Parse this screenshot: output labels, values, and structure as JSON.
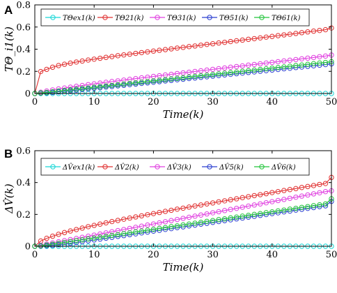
{
  "chart_data": [
    {
      "type": "line",
      "panel_label": "A",
      "xlabel": "Time(k)",
      "ylabel": "TΘ_i1(k)",
      "xlim": [
        0,
        50
      ],
      "ylim": [
        0,
        0.8
      ],
      "xticks": [
        "0",
        "10",
        "20",
        "30",
        "40",
        "50"
      ],
      "yticks": [
        "0",
        "0.2",
        "0.4",
        "0.6",
        "0.8"
      ],
      "grid": false,
      "legend": "top",
      "x": [
        0,
        1,
        2,
        3,
        4,
        5,
        6,
        7,
        8,
        9,
        10,
        11,
        12,
        13,
        14,
        15,
        16,
        17,
        18,
        19,
        20,
        21,
        22,
        23,
        24,
        25,
        26,
        27,
        28,
        29,
        30,
        31,
        32,
        33,
        34,
        35,
        36,
        37,
        38,
        39,
        40,
        41,
        42,
        43,
        44,
        45,
        46,
        47,
        48,
        49,
        50
      ],
      "series": [
        {
          "name": "TΘex1(k)",
          "color": "#17d6d6",
          "values": [
            0,
            0,
            0,
            0,
            0,
            0,
            0,
            0,
            0,
            0,
            0,
            0,
            0,
            0,
            0,
            0,
            0,
            0,
            0,
            0,
            0,
            0,
            0,
            0,
            0,
            0,
            0,
            0,
            0,
            0,
            0,
            0,
            0,
            0,
            0,
            0,
            0,
            0,
            0,
            0,
            0,
            0,
            0,
            0,
            0,
            0,
            0,
            0,
            0,
            0,
            0
          ]
        },
        {
          "name": "TΘ21(k)",
          "color": "#e03131",
          "values": [
            0,
            0.198,
            0.218,
            0.237,
            0.252,
            0.264,
            0.274,
            0.284,
            0.293,
            0.302,
            0.31,
            0.318,
            0.326,
            0.333,
            0.341,
            0.348,
            0.355,
            0.362,
            0.369,
            0.376,
            0.383,
            0.39,
            0.396,
            0.403,
            0.41,
            0.416,
            0.423,
            0.429,
            0.436,
            0.443,
            0.449,
            0.456,
            0.462,
            0.469,
            0.476,
            0.482,
            0.489,
            0.495,
            0.502,
            0.509,
            0.515,
            0.522,
            0.529,
            0.535,
            0.542,
            0.549,
            0.556,
            0.563,
            0.569,
            0.576,
            0.591
          ]
        },
        {
          "name": "TΘ31(k)",
          "color": "#e040e0",
          "values": [
            0,
            0.011,
            0.022,
            0.032,
            0.041,
            0.049,
            0.057,
            0.065,
            0.072,
            0.08,
            0.087,
            0.094,
            0.101,
            0.108,
            0.114,
            0.121,
            0.128,
            0.134,
            0.141,
            0.147,
            0.154,
            0.16,
            0.167,
            0.173,
            0.18,
            0.186,
            0.192,
            0.199,
            0.205,
            0.211,
            0.218,
            0.224,
            0.23,
            0.237,
            0.243,
            0.249,
            0.256,
            0.262,
            0.268,
            0.275,
            0.281,
            0.287,
            0.294,
            0.3,
            0.306,
            0.313,
            0.319,
            0.325,
            0.332,
            0.338,
            0.347
          ]
        },
        {
          "name": "TΘ51(k)",
          "color": "#2a3fd0",
          "values": [
            0,
            0.003,
            0.006,
            0.01,
            0.015,
            0.02,
            0.025,
            0.03,
            0.036,
            0.041,
            0.047,
            0.052,
            0.058,
            0.063,
            0.069,
            0.074,
            0.08,
            0.085,
            0.091,
            0.096,
            0.102,
            0.107,
            0.113,
            0.118,
            0.124,
            0.129,
            0.135,
            0.14,
            0.146,
            0.151,
            0.157,
            0.162,
            0.168,
            0.173,
            0.179,
            0.184,
            0.19,
            0.195,
            0.201,
            0.206,
            0.212,
            0.217,
            0.223,
            0.228,
            0.234,
            0.239,
            0.245,
            0.25,
            0.256,
            0.261,
            0.268
          ]
        },
        {
          "name": "TΘ61(k)",
          "color": "#22c43a",
          "values": [
            0,
            0.005,
            0.01,
            0.016,
            0.022,
            0.028,
            0.033,
            0.039,
            0.045,
            0.05,
            0.056,
            0.062,
            0.068,
            0.073,
            0.079,
            0.085,
            0.091,
            0.096,
            0.102,
            0.108,
            0.114,
            0.119,
            0.125,
            0.131,
            0.137,
            0.142,
            0.148,
            0.154,
            0.16,
            0.165,
            0.171,
            0.177,
            0.183,
            0.188,
            0.194,
            0.2,
            0.206,
            0.211,
            0.217,
            0.223,
            0.229,
            0.234,
            0.24,
            0.246,
            0.252,
            0.257,
            0.263,
            0.269,
            0.275,
            0.28,
            0.287
          ]
        }
      ]
    },
    {
      "type": "line",
      "panel_label": "B",
      "xlabel": "Time(k)",
      "ylabel": "ΔV̂(k)",
      "xlim": [
        0,
        50
      ],
      "ylim": [
        0,
        0.6
      ],
      "xticks": [
        "0",
        "10",
        "20",
        "30",
        "40",
        "50"
      ],
      "yticks": [
        "0",
        "0.2",
        "0.4",
        "0.6"
      ],
      "grid": false,
      "legend": "top",
      "x": [
        0,
        1,
        2,
        3,
        4,
        5,
        6,
        7,
        8,
        9,
        10,
        11,
        12,
        13,
        14,
        15,
        16,
        17,
        18,
        19,
        20,
        21,
        22,
        23,
        24,
        25,
        26,
        27,
        28,
        29,
        30,
        31,
        32,
        33,
        34,
        35,
        36,
        37,
        38,
        39,
        40,
        41,
        42,
        43,
        44,
        45,
        46,
        47,
        48,
        49,
        50
      ],
      "series": [
        {
          "name": "ΔV̂ex1(k)",
          "color": "#17d6d6",
          "values": [
            0,
            0,
            0,
            0,
            0,
            0,
            0,
            0,
            0,
            0,
            0,
            0,
            0,
            0,
            0,
            0,
            0,
            0,
            0,
            0,
            0,
            0,
            0,
            0,
            0,
            0,
            0,
            0,
            0,
            0,
            0,
            0,
            0,
            0,
            0,
            0,
            0,
            0,
            0,
            0,
            0,
            0,
            0,
            0,
            0,
            0,
            0,
            0,
            0,
            0,
            0
          ]
        },
        {
          "name": "ΔV̂2(k)",
          "color": "#e03131",
          "values": [
            0,
            0.033,
            0.05,
            0.063,
            0.075,
            0.086,
            0.096,
            0.105,
            0.114,
            0.123,
            0.131,
            0.139,
            0.147,
            0.155,
            0.162,
            0.17,
            0.177,
            0.184,
            0.191,
            0.198,
            0.205,
            0.212,
            0.219,
            0.226,
            0.233,
            0.239,
            0.246,
            0.253,
            0.259,
            0.266,
            0.272,
            0.279,
            0.285,
            0.292,
            0.298,
            0.305,
            0.311,
            0.318,
            0.324,
            0.33,
            0.337,
            0.343,
            0.35,
            0.356,
            0.362,
            0.369,
            0.375,
            0.381,
            0.388,
            0.394,
            0.432
          ]
        },
        {
          "name": "ΔV̂3(k)",
          "color": "#e040e0",
          "values": [
            0,
            0.007,
            0.014,
            0.021,
            0.028,
            0.035,
            0.042,
            0.049,
            0.056,
            0.063,
            0.07,
            0.077,
            0.084,
            0.091,
            0.098,
            0.105,
            0.112,
            0.119,
            0.126,
            0.133,
            0.14,
            0.147,
            0.154,
            0.161,
            0.168,
            0.175,
            0.182,
            0.189,
            0.196,
            0.203,
            0.21,
            0.217,
            0.224,
            0.231,
            0.238,
            0.245,
            0.252,
            0.259,
            0.266,
            0.273,
            0.28,
            0.287,
            0.294,
            0.301,
            0.308,
            0.315,
            0.322,
            0.329,
            0.336,
            0.343,
            0.348
          ]
        },
        {
          "name": "ΔV̂5(k)",
          "color": "#2a3fd0",
          "values": [
            0,
            0.001,
            0.003,
            0.006,
            0.01,
            0.014,
            0.019,
            0.024,
            0.029,
            0.034,
            0.04,
            0.045,
            0.051,
            0.056,
            0.062,
            0.067,
            0.073,
            0.078,
            0.084,
            0.089,
            0.095,
            0.1,
            0.106,
            0.111,
            0.117,
            0.122,
            0.128,
            0.133,
            0.139,
            0.144,
            0.15,
            0.155,
            0.161,
            0.166,
            0.172,
            0.177,
            0.183,
            0.188,
            0.194,
            0.199,
            0.205,
            0.21,
            0.216,
            0.221,
            0.227,
            0.232,
            0.238,
            0.243,
            0.249,
            0.254,
            0.282
          ]
        },
        {
          "name": "ΔV̂6(k)",
          "color": "#22c43a",
          "values": [
            0,
            0.003,
            0.008,
            0.013,
            0.018,
            0.024,
            0.029,
            0.035,
            0.04,
            0.046,
            0.051,
            0.057,
            0.062,
            0.068,
            0.073,
            0.079,
            0.084,
            0.09,
            0.095,
            0.101,
            0.106,
            0.112,
            0.117,
            0.123,
            0.128,
            0.134,
            0.139,
            0.145,
            0.15,
            0.156,
            0.161,
            0.167,
            0.172,
            0.178,
            0.183,
            0.189,
            0.194,
            0.2,
            0.205,
            0.211,
            0.216,
            0.222,
            0.227,
            0.233,
            0.238,
            0.244,
            0.249,
            0.255,
            0.26,
            0.266,
            0.298
          ]
        }
      ]
    }
  ]
}
